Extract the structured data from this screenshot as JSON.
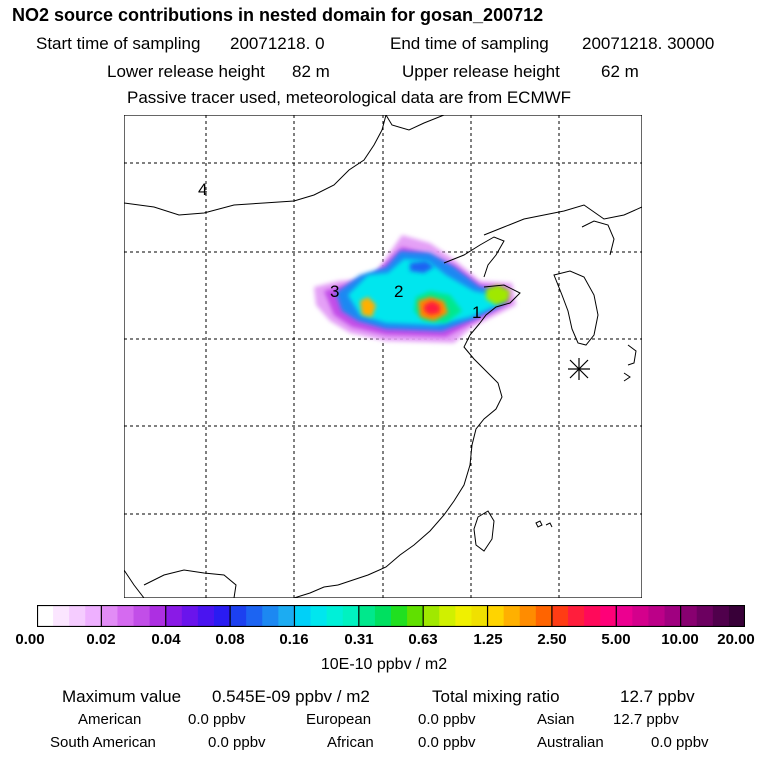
{
  "title": "NO2 source contributions in nested domain for gosan_200712",
  "header": {
    "start_label": "Start time of sampling",
    "start_value": "20071218.     0",
    "end_label": "End time of sampling",
    "end_value": "20071218. 30000",
    "lower_label": "Lower release height",
    "lower_value": "82 m",
    "upper_label": "Upper release height",
    "upper_value": "62 m",
    "note": "Passive tracer used, meteorological data are from ECMWF"
  },
  "map": {
    "region_labels": [
      "1",
      "2",
      "3",
      "4"
    ],
    "receptor": "gosan station marker"
  },
  "colorbar": {
    "ticks": [
      "0.00",
      "0.02",
      "0.04",
      "0.08",
      "0.16",
      "0.31",
      "0.63",
      "1.25",
      "2.50",
      "5.00",
      "10.00",
      "20.00"
    ],
    "colors": [
      "#ffffff",
      "#fbe6ff",
      "#f5ccff",
      "#eeb0ff",
      "#e28cf6",
      "#d56af0",
      "#c24ee8",
      "#ad2fe2",
      "#8a1ae6",
      "#6a14ec",
      "#4a14f0",
      "#2a1cf2",
      "#1c40f0",
      "#1c64f2",
      "#1c88f2",
      "#1cacf2",
      "#00d0f8",
      "#00e6ee",
      "#00f0d8",
      "#00f2c0",
      "#00e88c",
      "#00e060",
      "#20e020",
      "#60e000",
      "#a0e800",
      "#d0f000",
      "#f0f000",
      "#f0e000",
      "#ffd400",
      "#ffb000",
      "#ff8c00",
      "#ff6400",
      "#ff3c14",
      "#ff1e3c",
      "#ff0a5a",
      "#ff0078",
      "#ec0090",
      "#d4008c",
      "#bc0088",
      "#a00080",
      "#880070",
      "#6c0060",
      "#50004c",
      "#380038"
    ],
    "unit": "10E-10 ppbv / m2"
  },
  "summary": {
    "max_label": "Maximum value",
    "max_value": "0.545E-09 ppbv / m2",
    "total_label": "Total mixing ratio",
    "total_value": "12.7 ppbv",
    "regions": [
      {
        "name": "American",
        "value": "0.0 ppbv"
      },
      {
        "name": "European",
        "value": "0.0 ppbv"
      },
      {
        "name": "Asian",
        "value": "12.7 ppbv"
      },
      {
        "name": "South American",
        "value": "0.0 ppbv"
      },
      {
        "name": "African",
        "value": "0.0 ppbv"
      },
      {
        "name": "Australian",
        "value": "0.0 ppbv"
      }
    ]
  }
}
